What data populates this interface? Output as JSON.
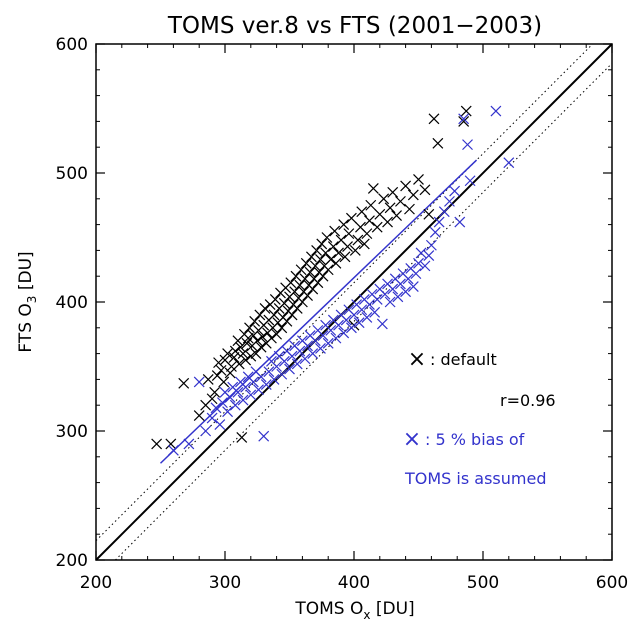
{
  "chart_data": {
    "type": "scatter",
    "title": "TOMS ver.8 vs FTS (2001−2003)",
    "xlabel": {
      "prefix": "TOMS O",
      "sub": "x",
      "suffix": " [DU]"
    },
    "ylabel": {
      "prefix": "FTS O",
      "sub": "3",
      "suffix": " [DU]"
    },
    "xlim": [
      200,
      600
    ],
    "ylim": [
      200,
      600
    ],
    "xticks": [
      "200",
      "300",
      "400",
      "500",
      "600"
    ],
    "yticks": [
      "200",
      "300",
      "400",
      "500",
      "600"
    ],
    "grid": false,
    "reference_lines": [
      {
        "type": "one-to-one",
        "style": "solid"
      },
      {
        "type": "offset",
        "offset": 15,
        "style": "dotted"
      },
      {
        "type": "offset",
        "offset": -15,
        "style": "dotted"
      }
    ],
    "legend": {
      "placement": "lower-right",
      "marker_symbol": "×",
      "default_label": ": default",
      "r_label": "r=0.96",
      "bias_label": ": 5 % bias of",
      "bias_label_2": "TOMS is assumed"
    },
    "series": [
      {
        "color": "#000000",
        "marker": "x",
        "points": [
          [
            247,
            290
          ],
          [
            258,
            290
          ],
          [
            268,
            337
          ],
          [
            280,
            312
          ],
          [
            285,
            320
          ],
          [
            287,
            340
          ],
          [
            290,
            325
          ],
          [
            292,
            330
          ],
          [
            294,
            343
          ],
          [
            295,
            353
          ],
          [
            297,
            347
          ],
          [
            299,
            338
          ],
          [
            300,
            355
          ],
          [
            302,
            360
          ],
          [
            304,
            345
          ],
          [
            305,
            350
          ],
          [
            307,
            357
          ],
          [
            308,
            362
          ],
          [
            310,
            370
          ],
          [
            311,
            352
          ],
          [
            312,
            365
          ],
          [
            313,
            295
          ],
          [
            314,
            360
          ],
          [
            315,
            375
          ],
          [
            316,
            355
          ],
          [
            317,
            368
          ],
          [
            318,
            372
          ],
          [
            319,
            380
          ],
          [
            320,
            358
          ],
          [
            321,
            366
          ],
          [
            322,
            374
          ],
          [
            323,
            385
          ],
          [
            324,
            360
          ],
          [
            325,
            370
          ],
          [
            326,
            378
          ],
          [
            327,
            390
          ],
          [
            328,
            365
          ],
          [
            329,
            373
          ],
          [
            330,
            382
          ],
          [
            331,
            395
          ],
          [
            332,
            368
          ],
          [
            333,
            376
          ],
          [
            334,
            386
          ],
          [
            335,
            398
          ],
          [
            336,
            372
          ],
          [
            337,
            380
          ],
          [
            338,
            390
          ],
          [
            339,
            402
          ],
          [
            340,
            375
          ],
          [
            341,
            384
          ],
          [
            342,
            395
          ],
          [
            343,
            407
          ],
          [
            344,
            380
          ],
          [
            345,
            388
          ],
          [
            346,
            399
          ],
          [
            347,
            411
          ],
          [
            348,
            385
          ],
          [
            349,
            393
          ],
          [
            350,
            404
          ],
          [
            351,
            415
          ],
          [
            352,
            390
          ],
          [
            353,
            398
          ],
          [
            354,
            408
          ],
          [
            355,
            420
          ],
          [
            356,
            395
          ],
          [
            357,
            403
          ],
          [
            358,
            413
          ],
          [
            359,
            425
          ],
          [
            360,
            400
          ],
          [
            361,
            408
          ],
          [
            362,
            418
          ],
          [
            363,
            430
          ],
          [
            364,
            405
          ],
          [
            365,
            413
          ],
          [
            366,
            423
          ],
          [
            367,
            435
          ],
          [
            368,
            410
          ],
          [
            369,
            418
          ],
          [
            370,
            428
          ],
          [
            371,
            440
          ],
          [
            372,
            415
          ],
          [
            373,
            423
          ],
          [
            374,
            433
          ],
          [
            375,
            445
          ],
          [
            376,
            420
          ],
          [
            377,
            428
          ],
          [
            378,
            438
          ],
          [
            379,
            450
          ],
          [
            380,
            425
          ],
          [
            382,
            433
          ],
          [
            384,
            443
          ],
          [
            385,
            455
          ],
          [
            386,
            430
          ],
          [
            388,
            438
          ],
          [
            390,
            448
          ],
          [
            392,
            460
          ],
          [
            393,
            435
          ],
          [
            395,
            443
          ],
          [
            396,
            453
          ],
          [
            398,
            465
          ],
          [
            400,
            382
          ],
          [
            401,
            440
          ],
          [
            403,
            448
          ],
          [
            405,
            458
          ],
          [
            406,
            470
          ],
          [
            408,
            445
          ],
          [
            410,
            453
          ],
          [
            412,
            463
          ],
          [
            413,
            475
          ],
          [
            415,
            488
          ],
          [
            418,
            458
          ],
          [
            420,
            468
          ],
          [
            423,
            480
          ],
          [
            426,
            462
          ],
          [
            428,
            473
          ],
          [
            430,
            485
          ],
          [
            433,
            467
          ],
          [
            436,
            478
          ],
          [
            440,
            490
          ],
          [
            443,
            472
          ],
          [
            446,
            483
          ],
          [
            450,
            495
          ],
          [
            455,
            487
          ],
          [
            458,
            468
          ],
          [
            462,
            542
          ],
          [
            465,
            523
          ],
          [
            485,
            540
          ],
          [
            487,
            548
          ]
        ]
      },
      {
        "color": "#3333cc",
        "marker": "x",
        "points": [
          [
            260,
            285
          ],
          [
            272,
            290
          ],
          [
            280,
            338
          ],
          [
            285,
            300
          ],
          [
            290,
            310
          ],
          [
            293,
            318
          ],
          [
            296,
            305
          ],
          [
            298,
            322
          ],
          [
            300,
            330
          ],
          [
            302,
            315
          ],
          [
            304,
            326
          ],
          [
            306,
            334
          ],
          [
            308,
            320
          ],
          [
            310,
            330
          ],
          [
            312,
            338
          ],
          [
            314,
            324
          ],
          [
            316,
            334
          ],
          [
            318,
            342
          ],
          [
            320,
            328
          ],
          [
            322,
            338
          ],
          [
            324,
            346
          ],
          [
            326,
            332
          ],
          [
            328,
            342
          ],
          [
            330,
            296
          ],
          [
            332,
            336
          ],
          [
            334,
            346
          ],
          [
            336,
            354
          ],
          [
            338,
            340
          ],
          [
            340,
            350
          ],
          [
            342,
            358
          ],
          [
            344,
            344
          ],
          [
            346,
            354
          ],
          [
            348,
            362
          ],
          [
            350,
            348
          ],
          [
            352,
            358
          ],
          [
            354,
            366
          ],
          [
            356,
            352
          ],
          [
            358,
            362
          ],
          [
            360,
            370
          ],
          [
            362,
            356
          ],
          [
            364,
            366
          ],
          [
            366,
            374
          ],
          [
            368,
            360
          ],
          [
            370,
            370
          ],
          [
            372,
            378
          ],
          [
            374,
            364
          ],
          [
            376,
            374
          ],
          [
            378,
            382
          ],
          [
            380,
            368
          ],
          [
            382,
            378
          ],
          [
            384,
            386
          ],
          [
            386,
            372
          ],
          [
            388,
            382
          ],
          [
            390,
            390
          ],
          [
            392,
            376
          ],
          [
            394,
            386
          ],
          [
            396,
            394
          ],
          [
            398,
            380
          ],
          [
            400,
            390
          ],
          [
            402,
            398
          ],
          [
            404,
            384
          ],
          [
            406,
            394
          ],
          [
            408,
            402
          ],
          [
            410,
            388
          ],
          [
            412,
            398
          ],
          [
            414,
            406
          ],
          [
            416,
            392
          ],
          [
            418,
            402
          ],
          [
            420,
            410
          ],
          [
            422,
            383
          ],
          [
            424,
            406
          ],
          [
            426,
            414
          ],
          [
            428,
            400
          ],
          [
            430,
            410
          ],
          [
            432,
            418
          ],
          [
            434,
            404
          ],
          [
            436,
            414
          ],
          [
            438,
            422
          ],
          [
            440,
            408
          ],
          [
            442,
            418
          ],
          [
            444,
            426
          ],
          [
            446,
            412
          ],
          [
            448,
            422
          ],
          [
            450,
            430
          ],
          [
            452,
            438
          ],
          [
            455,
            428
          ],
          [
            458,
            436
          ],
          [
            460,
            444
          ],
          [
            463,
            454
          ],
          [
            466,
            462
          ],
          [
            470,
            470
          ],
          [
            474,
            478
          ],
          [
            478,
            486
          ],
          [
            482,
            462
          ],
          [
            485,
            542
          ],
          [
            488,
            522
          ],
          [
            490,
            494
          ],
          [
            510,
            548
          ],
          [
            520,
            508
          ]
        ]
      }
    ],
    "fit_line": {
      "color": "#3333cc",
      "x": [
        250,
        495
      ],
      "y": [
        275,
        510
      ]
    }
  }
}
